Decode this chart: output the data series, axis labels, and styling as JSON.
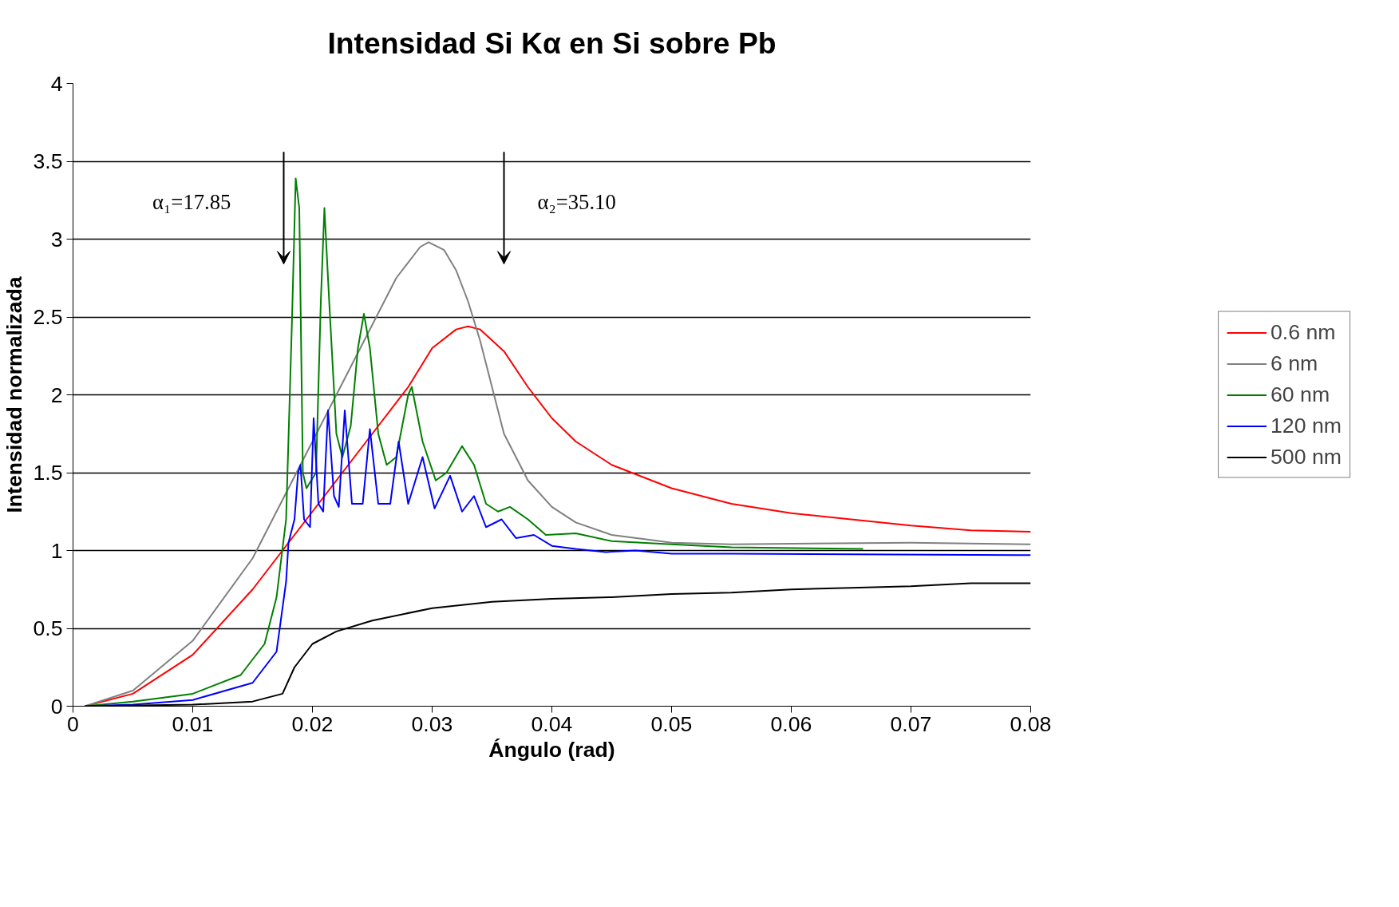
{
  "chart_data": {
    "type": "line",
    "title": "Intensidad Si Kα en Si sobre Pb",
    "xlabel": "Ángulo (rad)",
    "ylabel": "Intensidad normalizada",
    "xlim": [
      0,
      0.08
    ],
    "ylim": [
      0,
      4
    ],
    "xticks": [
      0,
      0.01,
      0.02,
      0.03,
      0.04,
      0.05,
      0.06,
      0.07,
      0.08
    ],
    "yticks": [
      0,
      0.5,
      1,
      1.5,
      2,
      2.5,
      3,
      3.5,
      4
    ],
    "grid": "y",
    "legend": "right",
    "line_style": "solid",
    "marker": "none",
    "annotations": [
      "α₁=17.85",
      "α₂=35.10"
    ],
    "series": [
      {
        "name": "0.6 nm",
        "color": "#ff0000",
        "x": [
          0.001,
          0.005,
          0.01,
          0.015,
          0.018,
          0.02,
          0.025,
          0.028,
          0.03,
          0.032,
          0.033,
          0.034,
          0.036,
          0.038,
          0.04,
          0.042,
          0.045,
          0.05,
          0.055,
          0.06,
          0.065,
          0.07,
          0.075,
          0.08
        ],
        "values": [
          0,
          0.08,
          0.33,
          0.75,
          1.05,
          1.25,
          1.75,
          2.05,
          2.3,
          2.42,
          2.44,
          2.42,
          2.28,
          2.05,
          1.85,
          1.7,
          1.55,
          1.4,
          1.3,
          1.24,
          1.2,
          1.16,
          1.13,
          1.12
        ]
      },
      {
        "name": "6 nm",
        "color": "#808080",
        "x": [
          0.001,
          0.005,
          0.01,
          0.015,
          0.018,
          0.02,
          0.022,
          0.025,
          0.027,
          0.029,
          0.0297,
          0.031,
          0.032,
          0.033,
          0.034,
          0.035,
          0.036,
          0.038,
          0.04,
          0.042,
          0.045,
          0.048,
          0.05,
          0.055,
          0.07,
          0.08
        ],
        "values": [
          0,
          0.1,
          0.42,
          0.95,
          1.4,
          1.7,
          2.0,
          2.45,
          2.75,
          2.95,
          2.98,
          2.93,
          2.8,
          2.6,
          2.35,
          2.05,
          1.75,
          1.45,
          1.28,
          1.18,
          1.1,
          1.07,
          1.05,
          1.04,
          1.05,
          1.04
        ]
      },
      {
        "name": "60 nm",
        "color": "#008000",
        "x": [
          0.001,
          0.005,
          0.01,
          0.014,
          0.016,
          0.017,
          0.0178,
          0.0183,
          0.0186,
          0.0189,
          0.0192,
          0.0195,
          0.0203,
          0.0207,
          0.021,
          0.0214,
          0.022,
          0.0225,
          0.0232,
          0.0238,
          0.0243,
          0.0248,
          0.0255,
          0.0262,
          0.027,
          0.028,
          0.0283,
          0.0292,
          0.0303,
          0.0312,
          0.0325,
          0.0335,
          0.0345,
          0.0355,
          0.0365,
          0.038,
          0.0395,
          0.042,
          0.045,
          0.05,
          0.055,
          0.066
        ],
        "values": [
          0,
          0.03,
          0.08,
          0.2,
          0.4,
          0.7,
          1.2,
          2.5,
          3.39,
          3.2,
          1.5,
          1.4,
          1.5,
          2.6,
          3.2,
          2.6,
          1.75,
          1.6,
          1.8,
          2.3,
          2.52,
          2.3,
          1.75,
          1.55,
          1.6,
          2.0,
          2.05,
          1.7,
          1.45,
          1.5,
          1.67,
          1.55,
          1.3,
          1.25,
          1.28,
          1.2,
          1.1,
          1.11,
          1.06,
          1.04,
          1.02,
          1.01
        ]
      },
      {
        "name": "120 nm",
        "color": "#0000ff",
        "x": [
          0.001,
          0.005,
          0.01,
          0.015,
          0.017,
          0.0178,
          0.018,
          0.0185,
          0.0188,
          0.019,
          0.0193,
          0.0198,
          0.0201,
          0.0205,
          0.0209,
          0.0213,
          0.0218,
          0.0222,
          0.0227,
          0.0233,
          0.0242,
          0.0248,
          0.0255,
          0.0265,
          0.0272,
          0.028,
          0.0292,
          0.0302,
          0.0315,
          0.0325,
          0.0335,
          0.0345,
          0.0358,
          0.037,
          0.0385,
          0.04,
          0.042,
          0.0445,
          0.047,
          0.05,
          0.055,
          0.08
        ],
        "values": [
          0,
          0.01,
          0.04,
          0.15,
          0.35,
          0.8,
          1.05,
          1.2,
          1.5,
          1.55,
          1.2,
          1.15,
          1.85,
          1.3,
          1.25,
          1.9,
          1.35,
          1.28,
          1.9,
          1.3,
          1.3,
          1.78,
          1.3,
          1.3,
          1.7,
          1.3,
          1.6,
          1.27,
          1.48,
          1.25,
          1.35,
          1.15,
          1.2,
          1.08,
          1.1,
          1.03,
          1.01,
          0.99,
          1.0,
          0.98,
          0.98,
          0.97
        ]
      },
      {
        "name": "500 nm",
        "color": "#000000",
        "x": [
          0.001,
          0.01,
          0.015,
          0.0175,
          0.0185,
          0.02,
          0.022,
          0.025,
          0.03,
          0.035,
          0.04,
          0.045,
          0.05,
          0.055,
          0.06,
          0.065,
          0.07,
          0.075,
          0.08
        ],
        "values": [
          0,
          0.01,
          0.03,
          0.08,
          0.25,
          0.4,
          0.48,
          0.55,
          0.63,
          0.67,
          0.69,
          0.7,
          0.72,
          0.73,
          0.75,
          0.76,
          0.77,
          0.79,
          0.79
        ]
      }
    ]
  }
}
